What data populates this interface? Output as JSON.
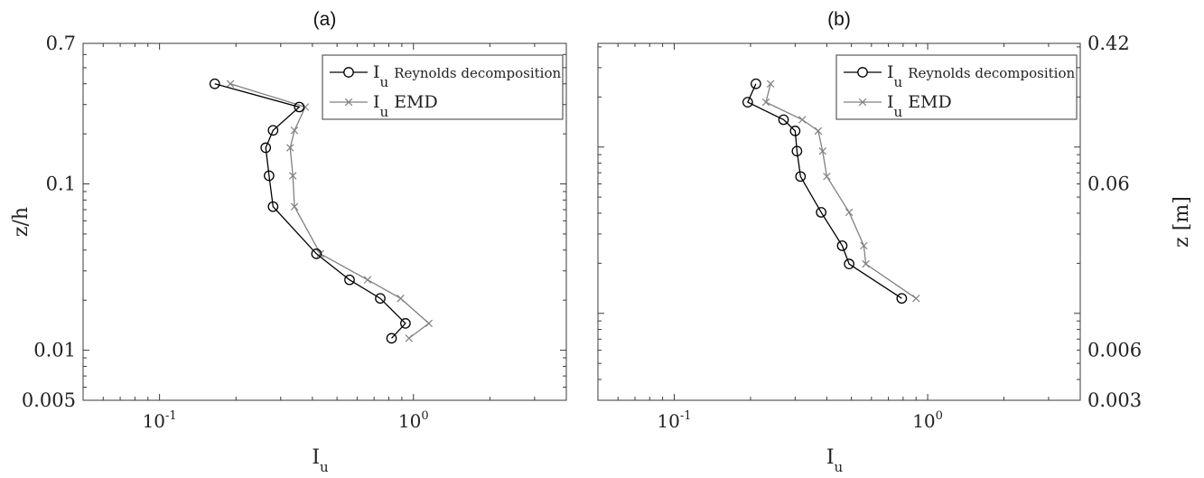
{
  "chart_data": [
    {
      "type": "line",
      "panel_label": "(a)",
      "xlabel": "I",
      "xlabel_sub": "u",
      "ylabel": "z/h",
      "xscale": "log",
      "yscale": "log",
      "xlim": [
        0.05,
        4.0
      ],
      "ylim": [
        0.005,
        0.7
      ],
      "xticks": [
        {
          "v": 0.1,
          "base": "10",
          "exp": "-1"
        },
        {
          "v": 1.0,
          "base": "10",
          "exp": "0"
        }
      ],
      "yticks": [
        {
          "v": 0.7,
          "label": "0.7"
        },
        {
          "v": 0.1,
          "label": "0.1"
        },
        {
          "v": 0.01,
          "label": "0.01"
        },
        {
          "v": 0.005,
          "label": "0.005"
        }
      ],
      "legend_position": "top-right",
      "series": [
        {
          "name": "Reynolds decomposition",
          "legend_main": "I",
          "legend_sub": "u",
          "marker": "circle",
          "color": "#000000",
          "x": [
            0.165,
            0.355,
            0.28,
            0.262,
            0.27,
            0.28,
            0.415,
            0.56,
            0.74,
            0.93,
            0.82
          ],
          "y": [
            0.4,
            0.29,
            0.21,
            0.165,
            0.112,
            0.073,
            0.038,
            0.0265,
            0.0205,
            0.0145,
            0.0118
          ]
        },
        {
          "name": "EMD",
          "legend_main": "I",
          "legend_sub": "u",
          "marker": "x",
          "color": "#808080",
          "x": [
            0.19,
            0.375,
            0.34,
            0.327,
            0.335,
            0.34,
            0.43,
            0.66,
            0.89,
            1.15,
            0.96
          ],
          "y": [
            0.4,
            0.29,
            0.21,
            0.165,
            0.112,
            0.073,
            0.038,
            0.0265,
            0.0205,
            0.0145,
            0.0118
          ]
        }
      ]
    },
    {
      "type": "line",
      "panel_label": "(b)",
      "xlabel": "I",
      "xlabel_sub": "u",
      "ylabel": "z [m]",
      "xscale": "log",
      "yscale": "log",
      "xlim": [
        0.05,
        4.0
      ],
      "ylim": [
        0.003,
        0.42
      ],
      "xticks": [
        {
          "v": 0.1,
          "base": "10",
          "exp": "-1"
        },
        {
          "v": 1.0,
          "base": "10",
          "exp": "0"
        }
      ],
      "yticks": [
        {
          "v": 0.42,
          "label": "0.42"
        },
        {
          "v": 0.06,
          "label": "0.06"
        },
        {
          "v": 0.006,
          "label": "0.006"
        },
        {
          "v": 0.003,
          "label": "0.003"
        }
      ],
      "legend_position": "top-right",
      "series": [
        {
          "name": "Reynolds decomposition",
          "legend_main": "I",
          "legend_sub": "u",
          "marker": "circle",
          "color": "#000000",
          "x": [
            0.21,
            0.195,
            0.27,
            0.3,
            0.305,
            0.315,
            0.38,
            0.46,
            0.49,
            0.79
          ],
          "y": [
            0.24,
            0.186,
            0.146,
            0.125,
            0.0945,
            0.0665,
            0.0405,
            0.0255,
            0.0198,
            0.0123
          ]
        },
        {
          "name": "EMD",
          "legend_main": "I",
          "legend_sub": "u",
          "marker": "x",
          "color": "#808080",
          "x": [
            0.24,
            0.23,
            0.32,
            0.37,
            0.385,
            0.4,
            0.49,
            0.56,
            0.57,
            0.9
          ],
          "y": [
            0.24,
            0.186,
            0.146,
            0.125,
            0.0945,
            0.0665,
            0.0405,
            0.0255,
            0.0198,
            0.0123
          ]
        }
      ]
    }
  ]
}
